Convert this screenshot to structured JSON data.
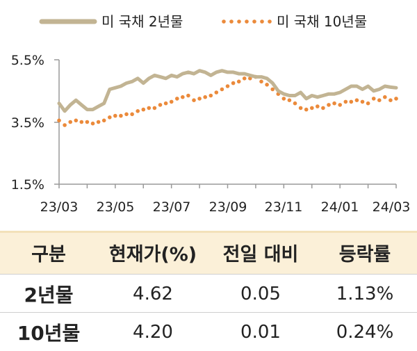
{
  "chart_data": {
    "type": "line",
    "legend": [
      "미 국채 2년물",
      "미 국채 10년물"
    ],
    "x_tick_labels": [
      "23/03",
      "23/05",
      "23/07",
      "23/09",
      "23/11",
      "24/01",
      "24/03"
    ],
    "y_tick_labels": [
      "5.5%",
      "3.5%",
      "1.5%"
    ],
    "ylim": [
      1.5,
      5.5
    ],
    "xlim": [
      0,
      12
    ],
    "series": [
      {
        "name": "미 국채 2년물",
        "color": "#c2b493",
        "style": "solid",
        "x": [
          0,
          0.2,
          0.4,
          0.6,
          0.8,
          1.0,
          1.2,
          1.4,
          1.6,
          1.8,
          2.0,
          2.2,
          2.4,
          2.6,
          2.8,
          3.0,
          3.2,
          3.4,
          3.6,
          3.8,
          4.0,
          4.2,
          4.4,
          4.6,
          4.8,
          5.0,
          5.2,
          5.4,
          5.6,
          5.8,
          6.0,
          6.2,
          6.4,
          6.6,
          6.8,
          7.0,
          7.2,
          7.4,
          7.6,
          7.8,
          8.0,
          8.2,
          8.4,
          8.6,
          8.8,
          9.0,
          9.2,
          9.4,
          9.6,
          9.8,
          10.0,
          10.2,
          10.4,
          10.6,
          10.8,
          11.0,
          11.2,
          11.4,
          11.6,
          11.8,
          12.0
        ],
        "values": [
          4.1,
          3.85,
          4.05,
          4.2,
          4.05,
          3.9,
          3.9,
          4.0,
          4.1,
          4.55,
          4.6,
          4.65,
          4.75,
          4.8,
          4.9,
          4.75,
          4.9,
          5.0,
          4.95,
          4.9,
          5.0,
          4.95,
          5.05,
          5.1,
          5.05,
          5.15,
          5.1,
          5.0,
          5.1,
          5.15,
          5.1,
          5.1,
          5.05,
          5.05,
          5.0,
          4.95,
          4.95,
          4.9,
          4.75,
          4.5,
          4.4,
          4.35,
          4.35,
          4.45,
          4.25,
          4.35,
          4.3,
          4.35,
          4.4,
          4.4,
          4.45,
          4.55,
          4.65,
          4.65,
          4.55,
          4.65,
          4.5,
          4.55,
          4.65,
          4.62,
          4.6
        ]
      },
      {
        "name": "미 국채 10년물",
        "color": "#eb8a3b",
        "style": "dotted",
        "x": [
          0,
          0.2,
          0.4,
          0.6,
          0.8,
          1.0,
          1.2,
          1.4,
          1.6,
          1.8,
          2.0,
          2.2,
          2.4,
          2.6,
          2.8,
          3.0,
          3.2,
          3.4,
          3.6,
          3.8,
          4.0,
          4.2,
          4.4,
          4.6,
          4.8,
          5.0,
          5.2,
          5.4,
          5.6,
          5.8,
          6.0,
          6.2,
          6.4,
          6.6,
          6.8,
          7.0,
          7.2,
          7.4,
          7.6,
          7.8,
          8.0,
          8.2,
          8.4,
          8.6,
          8.8,
          9.0,
          9.2,
          9.4,
          9.6,
          9.8,
          10.0,
          10.2,
          10.4,
          10.6,
          10.8,
          11.0,
          11.2,
          11.4,
          11.6,
          11.8,
          12.0
        ],
        "values": [
          3.55,
          3.4,
          3.5,
          3.55,
          3.5,
          3.5,
          3.45,
          3.5,
          3.55,
          3.65,
          3.7,
          3.7,
          3.75,
          3.75,
          3.85,
          3.9,
          3.95,
          3.95,
          4.05,
          4.1,
          4.15,
          4.25,
          4.3,
          4.35,
          4.2,
          4.25,
          4.3,
          4.35,
          4.45,
          4.55,
          4.65,
          4.75,
          4.8,
          4.9,
          4.9,
          4.95,
          4.8,
          4.7,
          4.55,
          4.4,
          4.25,
          4.2,
          4.1,
          3.95,
          3.9,
          3.95,
          4.0,
          3.95,
          4.05,
          4.1,
          4.05,
          4.15,
          4.15,
          4.2,
          4.15,
          4.1,
          4.25,
          4.2,
          4.3,
          4.2,
          4.25
        ]
      }
    ]
  },
  "table": {
    "headers": [
      "구분",
      "현재가(%)",
      "전일 대비",
      "등락률"
    ],
    "rows": [
      {
        "label": "2년물",
        "price": "4.62",
        "change": "0.05",
        "rate": "1.13%"
      },
      {
        "label": "10년물",
        "price": "4.20",
        "change": "0.01",
        "rate": "0.24%"
      }
    ]
  }
}
